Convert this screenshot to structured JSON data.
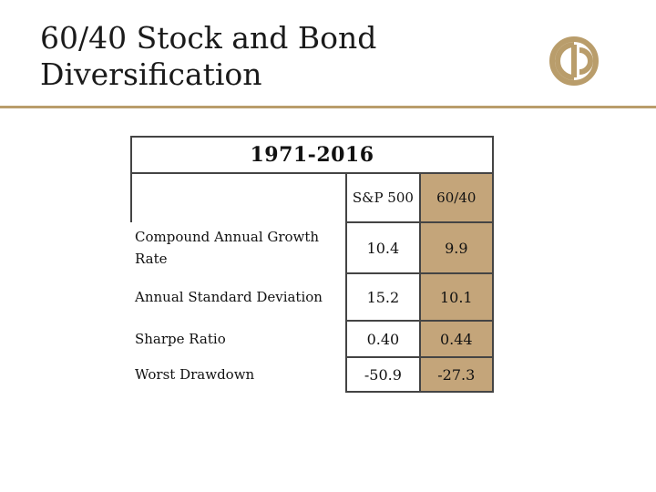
{
  "slide": {
    "title_line1": "60/40 Stock and Bond",
    "title_line2": "Diversification",
    "logo_icon": "firm-logo-icon",
    "accent_color": "#b99d6b"
  },
  "table": {
    "period": "1971-2016",
    "columns": [
      "S&P 500",
      "60/40"
    ],
    "rows": [
      {
        "label": "Compound Annual Growth Rate",
        "sp500": "10.4",
        "sixty_forty": "9.9"
      },
      {
        "label": "Annual Standard Deviation",
        "sp500": "15.2",
        "sixty_forty": "10.1"
      },
      {
        "label": "Sharpe Ratio",
        "sp500": "0.40",
        "sixty_forty": "0.44"
      },
      {
        "label": "Worst Drawdown",
        "sp500": "-50.9",
        "sixty_forty": "-27.3"
      }
    ],
    "highlight_color": "#c4a57a"
  }
}
